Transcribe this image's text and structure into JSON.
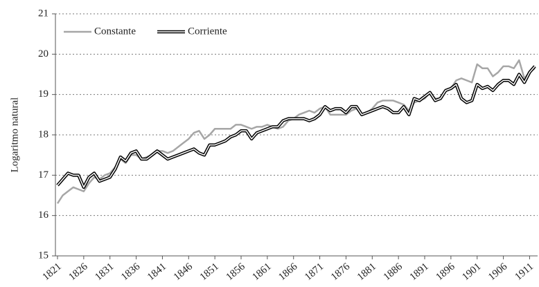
{
  "chart_data": {
    "type": "line",
    "y_label": "Logaritmo natural",
    "x": [
      1821,
      1822,
      1823,
      1824,
      1825,
      1826,
      1827,
      1828,
      1829,
      1830,
      1831,
      1832,
      1833,
      1834,
      1835,
      1836,
      1837,
      1838,
      1839,
      1840,
      1841,
      1842,
      1843,
      1844,
      1845,
      1846,
      1847,
      1848,
      1849,
      1850,
      1851,
      1852,
      1853,
      1854,
      1855,
      1856,
      1857,
      1858,
      1859,
      1860,
      1861,
      1862,
      1863,
      1864,
      1865,
      1866,
      1867,
      1868,
      1869,
      1870,
      1871,
      1872,
      1873,
      1874,
      1875,
      1876,
      1877,
      1878,
      1879,
      1880,
      1881,
      1882,
      1883,
      1884,
      1885,
      1886,
      1887,
      1888,
      1889,
      1890,
      1891,
      1892,
      1893,
      1894,
      1895,
      1896,
      1897,
      1898,
      1899,
      1900,
      1901,
      1902,
      1903,
      1904,
      1905,
      1906,
      1907,
      1908,
      1909,
      1910,
      1911,
      1912
    ],
    "series": [
      {
        "name": "Constante",
        "color": "#a6a6a6",
        "values": [
          16.3,
          16.5,
          16.6,
          16.7,
          16.65,
          16.6,
          16.8,
          16.95,
          16.9,
          17.0,
          17.05,
          17.2,
          17.4,
          17.3,
          17.5,
          17.5,
          17.4,
          17.45,
          17.5,
          17.6,
          17.6,
          17.55,
          17.6,
          17.7,
          17.8,
          17.9,
          18.05,
          18.1,
          17.9,
          18.0,
          18.15,
          18.15,
          18.15,
          18.15,
          18.25,
          18.25,
          18.2,
          18.15,
          18.2,
          18.2,
          18.25,
          18.2,
          18.15,
          18.2,
          18.35,
          18.4,
          18.5,
          18.55,
          18.6,
          18.55,
          18.65,
          18.7,
          18.5,
          18.5,
          18.5,
          18.5,
          18.6,
          18.65,
          18.5,
          18.55,
          18.65,
          18.8,
          18.85,
          18.85,
          18.85,
          18.8,
          18.75,
          18.6,
          18.8,
          18.85,
          18.9,
          19.05,
          18.9,
          18.9,
          19.1,
          19.15,
          19.35,
          19.4,
          19.35,
          19.3,
          19.75,
          19.65,
          19.65,
          19.45,
          19.55,
          19.7,
          19.7,
          19.65,
          19.85,
          19.4,
          19.55,
          19.65
        ]
      },
      {
        "name": "Corriente",
        "color": "#000000",
        "values": [
          16.75,
          16.9,
          17.05,
          17.0,
          17.0,
          16.7,
          16.95,
          17.05,
          16.85,
          16.9,
          16.95,
          17.15,
          17.45,
          17.35,
          17.55,
          17.6,
          17.4,
          17.4,
          17.5,
          17.6,
          17.5,
          17.4,
          17.45,
          17.5,
          17.55,
          17.6,
          17.65,
          17.55,
          17.5,
          17.75,
          17.75,
          17.8,
          17.85,
          17.95,
          18.0,
          18.1,
          18.1,
          17.9,
          18.05,
          18.1,
          18.15,
          18.2,
          18.2,
          18.35,
          18.4,
          18.4,
          18.4,
          18.4,
          18.35,
          18.4,
          18.5,
          18.7,
          18.6,
          18.65,
          18.65,
          18.55,
          18.7,
          18.7,
          18.5,
          18.55,
          18.6,
          18.65,
          18.7,
          18.65,
          18.55,
          18.55,
          18.7,
          18.5,
          18.9,
          18.85,
          18.95,
          19.05,
          18.85,
          18.9,
          19.1,
          19.15,
          19.25,
          18.9,
          18.8,
          18.85,
          19.25,
          19.15,
          19.2,
          19.1,
          19.25,
          19.35,
          19.35,
          19.25,
          19.5,
          19.3,
          19.55,
          19.7
        ]
      }
    ],
    "xlim": [
      1821,
      1912
    ],
    "xticks": [
      1821,
      1826,
      1831,
      1836,
      1841,
      1846,
      1851,
      1856,
      1861,
      1866,
      1871,
      1876,
      1881,
      1886,
      1891,
      1896,
      1901,
      1906,
      1911
    ],
    "ylim": [
      15,
      21
    ],
    "yticks": [
      15,
      16,
      17,
      18,
      19,
      20,
      21
    ],
    "grid": true,
    "legend": "top-left"
  }
}
